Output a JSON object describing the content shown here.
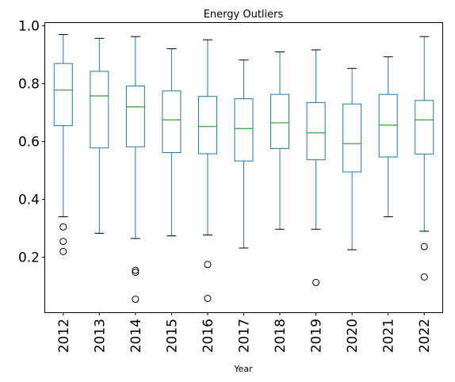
{
  "chart_data": {
    "type": "box",
    "title": "Energy Outliers",
    "xlabel": "Year",
    "ylabel": "",
    "ylim": [
      0.01,
      1.01
    ],
    "yticks": [
      "0.2",
      "0.4",
      "0.6",
      "0.8",
      "1.0"
    ],
    "categories": [
      "2012",
      "2013",
      "2014",
      "2015",
      "2016",
      "2017",
      "2018",
      "2019",
      "2020",
      "2021",
      "2022"
    ],
    "boxes": [
      {
        "whisker_low": 0.34,
        "q1": 0.655,
        "median": 0.778,
        "q3": 0.87,
        "whisker_high": 0.97,
        "outliers": [
          0.305,
          0.255,
          0.22
        ]
      },
      {
        "whisker_low": 0.283,
        "q1": 0.578,
        "median": 0.758,
        "q3": 0.843,
        "whisker_high": 0.957,
        "outliers": []
      },
      {
        "whisker_low": 0.265,
        "q1": 0.582,
        "median": 0.72,
        "q3": 0.792,
        "whisker_high": 0.963,
        "outliers": [
          0.155,
          0.148,
          0.055
        ]
      },
      {
        "whisker_low": 0.274,
        "q1": 0.562,
        "median": 0.675,
        "q3": 0.775,
        "whisker_high": 0.921,
        "outliers": []
      },
      {
        "whisker_low": 0.277,
        "q1": 0.558,
        "median": 0.652,
        "q3": 0.756,
        "whisker_high": 0.952,
        "outliers": [
          0.175,
          0.058
        ]
      },
      {
        "whisker_low": 0.232,
        "q1": 0.533,
        "median": 0.645,
        "q3": 0.748,
        "whisker_high": 0.882,
        "outliers": []
      },
      {
        "whisker_low": 0.297,
        "q1": 0.576,
        "median": 0.665,
        "q3": 0.763,
        "whisker_high": 0.91,
        "outliers": []
      },
      {
        "whisker_low": 0.297,
        "q1": 0.537,
        "median": 0.63,
        "q3": 0.735,
        "whisker_high": 0.917,
        "outliers": [
          0.113
        ]
      },
      {
        "whisker_low": 0.226,
        "q1": 0.495,
        "median": 0.593,
        "q3": 0.73,
        "whisker_high": 0.853,
        "outliers": []
      },
      {
        "whisker_low": 0.34,
        "q1": 0.547,
        "median": 0.657,
        "q3": 0.763,
        "whisker_high": 0.893,
        "outliers": []
      },
      {
        "whisker_low": 0.29,
        "q1": 0.557,
        "median": 0.675,
        "q3": 0.742,
        "whisker_high": 0.963,
        "outliers": [
          0.237,
          0.132
        ]
      }
    ],
    "colors": {
      "box": "#1f77b4",
      "median": "#2ca02c",
      "whisker": "#1f77b4",
      "outlier": "#000000",
      "axes": "#000000"
    },
    "grid": false,
    "legend": "none"
  }
}
